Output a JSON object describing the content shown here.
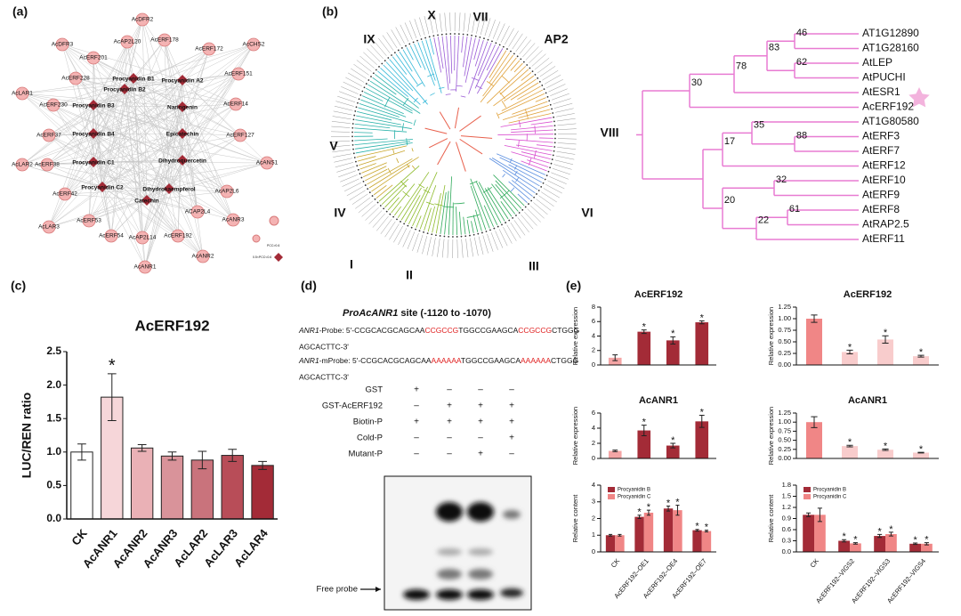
{
  "labels": {
    "a": "(a)",
    "b": "(b)",
    "c": "(c)",
    "d": "(d)",
    "e": "(e)"
  },
  "network": {
    "genes": [
      "AcDFR2",
      "AcDFR3",
      "AcAP2L20",
      "AcERF178",
      "AcERF172",
      "AcCHS2",
      "AcERF201",
      "AcERF228",
      "AcERF151",
      "AcLAR1",
      "AcERF230",
      "AcERF14",
      "AcERF37",
      "AcERF127",
      "AcLAR2",
      "AcERF38",
      "AcANS1",
      "AcERF42",
      "AcAP2L6",
      "AcANR3",
      "AcLAR3",
      "AcERF53",
      "AcERF54",
      "AcAP2L14",
      "AcERF192",
      "ACAP2L4",
      "AcANR2",
      "AcANR1"
    ],
    "compounds": [
      "Procyanidin B1",
      "Procyanidin B2",
      "Procyanidin A2",
      "Procyanidin B3",
      "Naringenin",
      "Procyanidin B4",
      "Epicatechin",
      "Procyanidin C1",
      "Dihydroquercetin",
      "Procyanidin C2",
      "Dihydrokaempferol",
      "Catechin"
    ],
    "legend": [
      "PCC>0.6",
      "0.5<PCC<0.6"
    ]
  },
  "tree": {
    "clades": [
      "IX",
      "X",
      "VII",
      "AP2",
      "V",
      "VIII",
      "IV",
      "VI",
      "I",
      "II",
      "III"
    ],
    "leaves": [
      "AT1G12890",
      "AT1G28160",
      "AtLEP",
      "AtPUCHI",
      "AtESR1",
      "AcERF192",
      "AT1G80580",
      "AtERF3",
      "AtERF7",
      "AtERF12",
      "AtERF10",
      "AtERF9",
      "AtERF8",
      "AtRAP2.5",
      "AtERF11"
    ],
    "bootstraps": [
      46,
      83,
      62,
      78,
      30,
      35,
      17,
      88,
      32,
      20,
      61,
      22
    ],
    "group": "VIII"
  },
  "emsa": {
    "title_gene": "ProAcANR1",
    "title_rest": " site (-1120 to -1070)",
    "probe": {
      "name": "ANR1",
      "line1": [
        "-Probe: 5'-CCGCACGCAGCAA",
        "CCGCCG",
        "TGGCCGAAGCA",
        "CCGCCG",
        "CTGGG"
      ],
      "line2": "AGCACTTC-3'"
    },
    "mprobe": {
      "name": "ANR1",
      "line1": [
        "-mProbe: 5'-CCGCACGCAGCAA",
        "AAAAAA",
        "TGGCCGAAGCA",
        "AAAAAA",
        "CTGGG"
      ],
      "line2": "AGCACTTC-3'"
    },
    "rows": [
      {
        "name": "GST",
        "signs": [
          "+",
          "–",
          "–",
          "–"
        ]
      },
      {
        "name": "GST-AcERF192",
        "signs": [
          "–",
          "+",
          "+",
          "+"
        ]
      },
      {
        "name": "Biotin-P",
        "signs": [
          "+",
          "+",
          "+",
          "+"
        ]
      },
      {
        "name": "Cold-P",
        "signs": [
          "–",
          "–",
          "–",
          "+"
        ]
      },
      {
        "name": "Mutant-P",
        "signs": [
          "–",
          "–",
          "+",
          "–"
        ]
      }
    ],
    "free_probe": "Free probe"
  },
  "chart_data": [
    {
      "type": "bar",
      "title": "AcERF192",
      "y_label": "LUC/REN ratio",
      "categories": [
        "CK",
        "AcANR1",
        "AcANR2",
        "AcANR3",
        "AcLAR2",
        "AcLAR3",
        "AcLAR4"
      ],
      "values": [
        1.0,
        1.82,
        1.06,
        0.94,
        0.88,
        0.95,
        0.8
      ],
      "errors": [
        0.12,
        0.35,
        0.05,
        0.06,
        0.13,
        0.09,
        0.06
      ],
      "colors": [
        "#ffffff",
        "#f6d6d9",
        "#eab1b6",
        "#d9939a",
        "#c9737c",
        "#b84d58",
        "#a32b37"
      ],
      "significant": [
        false,
        true,
        false,
        false,
        false,
        false,
        false
      ],
      "marker": "*",
      "ylim": [
        0,
        2.5
      ],
      "yticks": [
        {
          "value": 0,
          "label": "0.0"
        },
        {
          "value": 0.5,
          "label": "0.5"
        },
        {
          "value": 1,
          "label": "1.0"
        },
        {
          "value": 1.5,
          "label": "1.5"
        },
        {
          "value": 2,
          "label": "2.0"
        },
        {
          "value": 2.5,
          "label": "2.5"
        }
      ]
    },
    {
      "type": "bar",
      "title": "AcERF192",
      "y_label": "Relative expression",
      "categories": [
        "CK",
        "AcERF192–OE1",
        "AcERF192–OE4",
        "AcERF192–OE7"
      ],
      "values": [
        1.0,
        4.6,
        3.4,
        5.9
      ],
      "errors": [
        0.4,
        0.25,
        0.5,
        0.2
      ],
      "colors": [
        "#f4a5a5",
        "#a32b37",
        "#a32b37",
        "#a32b37"
      ],
      "significant": [
        false,
        true,
        true,
        true
      ],
      "marker": "*",
      "ylim": [
        0,
        8
      ],
      "yticks": [
        0,
        2,
        4,
        6,
        8
      ],
      "show_categories": false
    },
    {
      "type": "bar",
      "title": "AcERF192",
      "y_label": "Relative expression",
      "categories": [
        "CK",
        "AcERF192–VIGS2",
        "AcERF192–VIGS3",
        "AcERF192–VIGS4"
      ],
      "values": [
        1.0,
        0.28,
        0.55,
        0.19
      ],
      "errors": [
        0.08,
        0.04,
        0.08,
        0.02
      ],
      "colors": [
        "#f08686",
        "#f8cccc",
        "#f8cccc",
        "#f8cccc"
      ],
      "significant": [
        false,
        true,
        true,
        true
      ],
      "marker": "*",
      "ylim": [
        0,
        1.25
      ],
      "yticks": [
        {
          "value": 0,
          "label": "0.00"
        },
        {
          "value": 0.25,
          "label": "0.25"
        },
        {
          "value": 0.5,
          "label": "0.50"
        },
        {
          "value": 0.75,
          "label": "0.75"
        },
        {
          "value": 1,
          "label": "1.00"
        },
        {
          "value": 1.25,
          "label": "1.25"
        }
      ],
      "show_categories": false
    },
    {
      "type": "bar",
      "title": "AcANR1",
      "y_label": "Relative expression",
      "categories": [
        "CK",
        "AcERF192–OE1",
        "AcERF192–OE4",
        "AcERF192–OE7"
      ],
      "values": [
        1.0,
        3.7,
        1.7,
        4.9
      ],
      "errors": [
        0.1,
        0.7,
        0.3,
        0.8
      ],
      "colors": [
        "#f4a5a5",
        "#a32b37",
        "#a32b37",
        "#a32b37"
      ],
      "significant": [
        false,
        true,
        true,
        true
      ],
      "marker": "*",
      "ylim": [
        0,
        6
      ],
      "yticks": [
        0,
        2,
        4,
        6
      ],
      "show_categories": false
    },
    {
      "type": "bar",
      "title": "AcANR1",
      "y_label": "Relative expression",
      "categories": [
        "CK",
        "AcERF192–VIGS2",
        "AcERF192–VIGS3",
        "AcERF192–VIGS4"
      ],
      "values": [
        1.0,
        0.34,
        0.24,
        0.16
      ],
      "errors": [
        0.15,
        0.02,
        0.02,
        0.01
      ],
      "colors": [
        "#f08686",
        "#f8cccc",
        "#f8cccc",
        "#f8cccc"
      ],
      "significant": [
        false,
        true,
        true,
        true
      ],
      "marker": "*",
      "ylim": [
        0,
        1.25
      ],
      "yticks": [
        {
          "value": 0,
          "label": "0.00"
        },
        {
          "value": 0.25,
          "label": "0.25"
        },
        {
          "value": 0.5,
          "label": "0.50"
        },
        {
          "value": 0.75,
          "label": "0.75"
        },
        {
          "value": 1,
          "label": "1.00"
        },
        {
          "value": 1.25,
          "label": "1.25"
        }
      ],
      "show_categories": false
    },
    {
      "type": "grouped_bar",
      "y_label": "Relative content",
      "categories": [
        "CK",
        "AcERF192–OE1",
        "AcERF192–OE4",
        "AcERF192–OE7"
      ],
      "series": [
        {
          "name": "Procyanidin B",
          "color": "#a32b37",
          "values": [
            1.0,
            2.1,
            2.6,
            1.3
          ],
          "errors": [
            0.05,
            0.1,
            0.15,
            0.05
          ],
          "significant": [
            false,
            true,
            true,
            true
          ]
        },
        {
          "name": "Procyanidin C",
          "color": "#f08686",
          "values": [
            1.0,
            2.35,
            2.5,
            1.25
          ],
          "errors": [
            0.05,
            0.15,
            0.3,
            0.05
          ],
          "significant": [
            false,
            true,
            true,
            true
          ]
        }
      ],
      "marker": "*",
      "ylim": [
        0,
        4
      ],
      "yticks": [
        0,
        1,
        2,
        3,
        4
      ],
      "show_categories": true
    },
    {
      "type": "grouped_bar",
      "y_label": "Relative content",
      "categories": [
        "CK",
        "AcERF192–VIGS2",
        "AcERF192–VIGS3",
        "AcERF192–VIGS4"
      ],
      "series": [
        {
          "name": "Procyanidin B",
          "color": "#a32b37",
          "values": [
            1.0,
            0.3,
            0.43,
            0.22
          ],
          "errors": [
            0.05,
            0.03,
            0.04,
            0.02
          ],
          "significant": [
            false,
            true,
            true,
            true
          ]
        },
        {
          "name": "Procyanidin C",
          "color": "#f08686",
          "values": [
            1.0,
            0.23,
            0.48,
            0.22
          ],
          "errors": [
            0.18,
            0.02,
            0.05,
            0.03
          ],
          "significant": [
            false,
            true,
            true,
            true
          ]
        }
      ],
      "marker": "*",
      "ylim": [
        0,
        1.8
      ],
      "yticks": [
        {
          "value": 0,
          "label": "0.0"
        },
        {
          "value": 0.3,
          "label": "0.3"
        },
        {
          "value": 0.6,
          "label": "0.6"
        },
        {
          "value": 0.9,
          "label": "0.9"
        },
        {
          "value": 1.2,
          "label": "1.2"
        },
        {
          "value": 1.5,
          "label": "1.5"
        },
        {
          "value": 1.8,
          "label": "1.8"
        }
      ],
      "show_categories": true
    }
  ]
}
